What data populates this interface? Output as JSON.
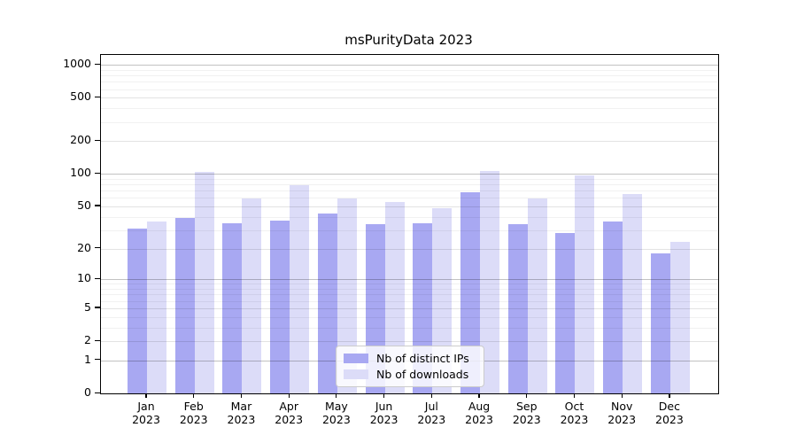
{
  "chart_data": {
    "type": "bar",
    "title": "msPurityData 2023",
    "categories": [
      "Jan",
      "Feb",
      "Mar",
      "Apr",
      "May",
      "Jun",
      "Jul",
      "Aug",
      "Sep",
      "Oct",
      "Nov",
      "Dec"
    ],
    "year_label": "2023",
    "series": [
      {
        "name": "Nb of distinct IPs",
        "color": "#a8a8f2",
        "values": [
          31,
          39,
          35,
          37,
          43,
          34,
          35,
          68,
          34,
          28,
          36,
          18
        ]
      },
      {
        "name": "Nb of downloads",
        "color": "#dcdcf8",
        "values": [
          36,
          104,
          59,
          79,
          59,
          55,
          48,
          107,
          59,
          96,
          65,
          23
        ]
      }
    ],
    "xlabel": "",
    "ylabel": "",
    "y_ticks": [
      0,
      1,
      2,
      5,
      10,
      20,
      50,
      100,
      200,
      500,
      1000
    ],
    "y_scale": "log10(value+1)",
    "ylim": [
      0,
      1243
    ],
    "grid": "horizontal major + minor",
    "legend_position": "inside-bottom-center"
  }
}
